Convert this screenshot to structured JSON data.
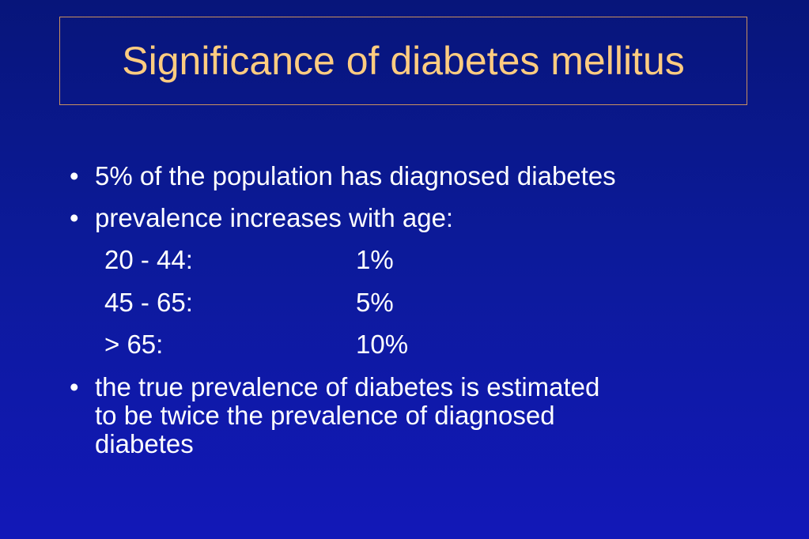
{
  "slide": {
    "title": "Significance of diabetes mellitus",
    "bullet_glyph": "•",
    "bullets": [
      "5% of the population has diagnosed diabetes",
      "prevalence increases with age:"
    ],
    "age_table": [
      {
        "range": "20 - 44:",
        "value": "1%"
      },
      {
        "range": "45 - 65:",
        "value": "5%"
      },
      {
        "range": "> 65:",
        "value": "10%"
      }
    ],
    "final_bullet_lines": [
      "the true prevalence of diabetes is estimated",
      "to be twice the prevalence of diagnosed",
      "diabetes"
    ],
    "colors": {
      "background_top": "#07157a",
      "background_bottom": "#1218b8",
      "title_text": "#ffcc80",
      "title_border": "#c99060",
      "body_text": "#ffffff"
    }
  }
}
